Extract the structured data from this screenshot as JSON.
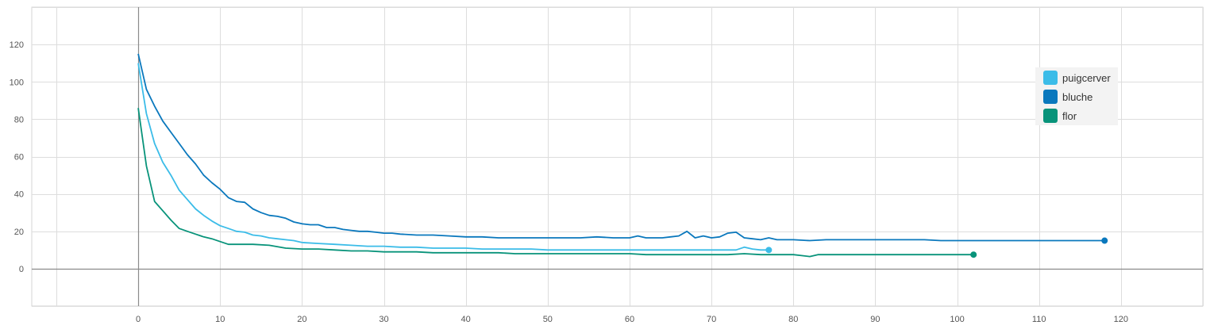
{
  "chart_data": {
    "type": "line",
    "xlim": [
      -13,
      130
    ],
    "ylim": [
      -20,
      140
    ],
    "x_ticks": [
      0,
      10,
      20,
      30,
      40,
      50,
      60,
      70,
      80,
      90,
      100,
      110,
      120
    ],
    "y_ticks": [
      0,
      20,
      40,
      60,
      80,
      100,
      120
    ],
    "x_tick_labels": [
      "0",
      "10",
      "20",
      "30",
      "40",
      "50",
      "60",
      "70",
      "80",
      "90",
      "100",
      "110",
      "120"
    ],
    "y_tick_labels": [
      "0",
      "20",
      "40",
      "60",
      "80",
      "100",
      "120"
    ],
    "grid": true,
    "legend_position": "right",
    "series": [
      {
        "name": "puigcerver",
        "color": "#3bbce8",
        "x": [
          0,
          1,
          2,
          3,
          4,
          5,
          6,
          7,
          8,
          9,
          10,
          11,
          12,
          13,
          14,
          15,
          16,
          17,
          18,
          19,
          20,
          22,
          24,
          26,
          28,
          30,
          32,
          34,
          36,
          38,
          40,
          42,
          44,
          46,
          48,
          50,
          52,
          54,
          56,
          58,
          60,
          62,
          64,
          66,
          68,
          70,
          72,
          73,
          74,
          75,
          76,
          77
        ],
        "y": [
          110,
          83,
          67,
          57,
          50,
          42,
          37,
          32,
          28.5,
          25.5,
          23,
          21.5,
          20,
          19.5,
          18,
          17.5,
          16.5,
          16,
          15.5,
          15,
          14,
          13.5,
          13,
          12.5,
          12,
          12,
          11.5,
          11.5,
          11,
          11,
          11,
          10.5,
          10.5,
          10.5,
          10.5,
          10,
          10,
          10,
          10,
          10,
          10,
          10,
          10,
          10,
          10,
          10,
          10,
          10,
          11.5,
          10.5,
          10,
          10
        ]
      },
      {
        "name": "bluche",
        "color": "#0a78bd",
        "x": [
          0,
          1,
          2,
          3,
          4,
          5,
          6,
          7,
          8,
          9,
          10,
          11,
          12,
          13,
          14,
          15,
          16,
          17,
          18,
          19,
          20,
          21,
          22,
          23,
          24,
          25,
          26,
          27,
          28,
          29,
          30,
          31,
          32,
          34,
          36,
          38,
          40,
          42,
          44,
          46,
          48,
          50,
          52,
          54,
          56,
          58,
          60,
          61,
          62,
          63,
          64,
          65,
          66,
          67,
          68,
          69,
          70,
          71,
          72,
          73,
          74,
          75,
          76,
          77,
          78,
          80,
          82,
          84,
          86,
          88,
          90,
          92,
          94,
          96,
          98,
          100,
          102,
          104,
          106,
          108,
          110,
          112,
          114,
          116,
          118
        ],
        "y": [
          115,
          96,
          87,
          79,
          73,
          67,
          61,
          56,
          50,
          46,
          42.5,
          38,
          36,
          35.5,
          32,
          30,
          28.5,
          28,
          27,
          25,
          24,
          23.5,
          23.5,
          22,
          22,
          21,
          20.5,
          20,
          20,
          19.5,
          19,
          19,
          18.5,
          18,
          18,
          17.5,
          17,
          17,
          16.5,
          16.5,
          16.5,
          16.5,
          16.5,
          16.5,
          17,
          16.5,
          16.5,
          17.5,
          16.5,
          16.5,
          16.5,
          17,
          17.5,
          20,
          16.5,
          17.5,
          16.5,
          17,
          19,
          19.5,
          16.5,
          16,
          15.5,
          16.5,
          15.5,
          15.5,
          15,
          15.5,
          15.5,
          15.5,
          15.5,
          15.5,
          15.5,
          15.5,
          15,
          15,
          15,
          15,
          15,
          15,
          15,
          15,
          15,
          15,
          15
        ]
      },
      {
        "name": "flor",
        "color": "#08937a",
        "x": [
          0,
          1,
          2,
          3,
          4,
          5,
          6,
          7,
          8,
          9,
          10,
          11,
          12,
          14,
          16,
          18,
          20,
          22,
          24,
          26,
          28,
          30,
          32,
          34,
          36,
          38,
          40,
          42,
          44,
          46,
          48,
          50,
          52,
          54,
          56,
          58,
          60,
          62,
          64,
          66,
          68,
          70,
          72,
          74,
          76,
          78,
          80,
          81,
          82,
          83,
          84,
          86,
          88,
          90,
          92,
          94,
          96,
          98,
          100,
          102
        ],
        "y": [
          86,
          55,
          36,
          31,
          26,
          21.5,
          20,
          18.5,
          17,
          16,
          14.5,
          13,
          13,
          13,
          12.5,
          11,
          10.5,
          10.5,
          10,
          9.5,
          9.5,
          9,
          9,
          9,
          8.5,
          8.5,
          8.5,
          8.5,
          8.5,
          8,
          8,
          8,
          8,
          8,
          8,
          8,
          8,
          7.5,
          7.5,
          7.5,
          7.5,
          7.5,
          7.5,
          8,
          7.5,
          7.5,
          7.5,
          7,
          6.5,
          7.5,
          7.5,
          7.5,
          7.5,
          7.5,
          7.5,
          7.5,
          7.5,
          7.5,
          7.5,
          7.5
        ]
      }
    ]
  }
}
